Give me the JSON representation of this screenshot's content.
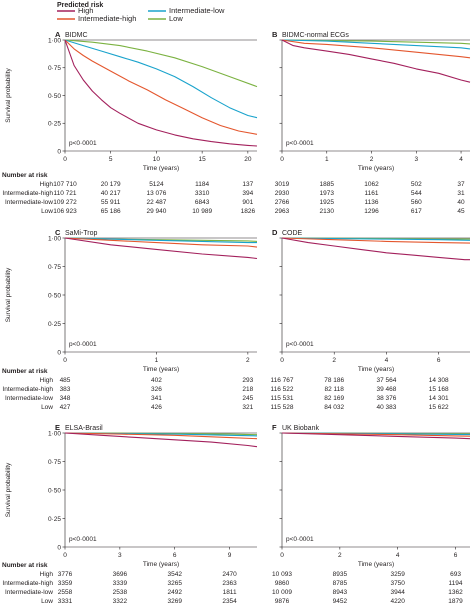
{
  "legend": {
    "title": "Predicted risk",
    "items": [
      {
        "label": "High",
        "color": "#a3205c"
      },
      {
        "label": "Intermediate-high",
        "color": "#e4572e"
      },
      {
        "label": "Intermediate-low",
        "color": "#1aa3cc"
      },
      {
        "label": "Low",
        "color": "#7bb241"
      }
    ]
  },
  "risk_groups": [
    "High",
    "Intermediate-high",
    "Intermediate-low",
    "Low"
  ],
  "number_at_risk_label": "Number at risk",
  "ylabel": "Survival probability",
  "xlabel": "Time (years)",
  "yticks": [
    "0",
    "0·25",
    "0·50",
    "0·75",
    "1·00"
  ],
  "chart_data": [
    {
      "panel": "A",
      "title": "BIDMC",
      "type": "line",
      "pvalue": "p<0·0001",
      "xlim": [
        0,
        21
      ],
      "ylim": [
        0,
        1
      ],
      "xticks": [
        0,
        5,
        10,
        15,
        20
      ],
      "series": [
        {
          "name": "High",
          "x": [
            0,
            1,
            2,
            3,
            4,
            5,
            6,
            8,
            10,
            12,
            14,
            16,
            18,
            20,
            21
          ],
          "y": [
            1,
            0.77,
            0.64,
            0.54,
            0.46,
            0.39,
            0.34,
            0.25,
            0.19,
            0.145,
            0.11,
            0.085,
            0.065,
            0.05,
            0.045
          ]
        },
        {
          "name": "Intermediate-high",
          "x": [
            0,
            1,
            2,
            3,
            5,
            7,
            9,
            11,
            13,
            15,
            17,
            19,
            21
          ],
          "y": [
            1,
            0.92,
            0.86,
            0.81,
            0.72,
            0.63,
            0.55,
            0.46,
            0.38,
            0.3,
            0.23,
            0.18,
            0.15
          ]
        },
        {
          "name": "Intermediate-low",
          "x": [
            0,
            2,
            4,
            6,
            8,
            10,
            12,
            14,
            16,
            18,
            20,
            21
          ],
          "y": [
            1,
            0.95,
            0.9,
            0.85,
            0.8,
            0.74,
            0.67,
            0.58,
            0.48,
            0.39,
            0.32,
            0.3
          ]
        },
        {
          "name": "Low",
          "x": [
            0,
            3,
            6,
            9,
            12,
            15,
            18,
            21
          ],
          "y": [
            1,
            0.98,
            0.95,
            0.9,
            0.84,
            0.76,
            0.67,
            0.58
          ]
        }
      ],
      "at_risk": {
        "ticks": [
          "0",
          "5",
          "10",
          "15",
          "20"
        ],
        "rows": [
          [
            "107 710",
            "20 179",
            "5124",
            "1184",
            "137"
          ],
          [
            "110 721",
            "40 217",
            "13 076",
            "3310",
            "394"
          ],
          [
            "109 272",
            "55 911",
            "22 487",
            "6843",
            "901"
          ],
          [
            "106 923",
            "65 186",
            "29 940",
            "10 989",
            "1826"
          ]
        ]
      }
    },
    {
      "panel": "B",
      "title": "BIDMC-normal ECGs",
      "type": "line",
      "pvalue": "p<0·0001",
      "xlim": [
        0,
        4.2
      ],
      "ylim": [
        0,
        1
      ],
      "xticks": [
        0,
        1,
        2,
        3,
        4
      ],
      "series": [
        {
          "name": "High",
          "x": [
            0,
            0.25,
            0.5,
            1,
            1.5,
            2,
            2.5,
            3,
            3.5,
            4,
            4.2
          ],
          "y": [
            1,
            0.95,
            0.93,
            0.9,
            0.87,
            0.83,
            0.79,
            0.74,
            0.7,
            0.64,
            0.62
          ]
        },
        {
          "name": "Intermediate-high",
          "x": [
            0,
            0.5,
            1,
            2,
            3,
            4,
            4.2
          ],
          "y": [
            1,
            0.97,
            0.96,
            0.93,
            0.89,
            0.85,
            0.84
          ]
        },
        {
          "name": "Intermediate-low",
          "x": [
            0,
            1,
            2,
            3,
            4,
            4.2
          ],
          "y": [
            1,
            0.99,
            0.97,
            0.95,
            0.93,
            0.92
          ]
        },
        {
          "name": "Low",
          "x": [
            0,
            1,
            2,
            3,
            4,
            4.2
          ],
          "y": [
            1,
            0.995,
            0.99,
            0.98,
            0.97,
            0.965
          ]
        }
      ],
      "at_risk": {
        "ticks": [
          "0",
          "1",
          "2",
          "3",
          "4"
        ],
        "rows": [
          [
            "3019",
            "1885",
            "1062",
            "502",
            "37"
          ],
          [
            "2930",
            "1973",
            "1161",
            "544",
            "31"
          ],
          [
            "2766",
            "1925",
            "1136",
            "560",
            "40"
          ],
          [
            "2963",
            "2130",
            "1296",
            "617",
            "45"
          ]
        ]
      }
    },
    {
      "panel": "C",
      "title": "SaMi-Trop",
      "type": "line",
      "pvalue": "p<0·0001",
      "xlim": [
        0,
        2.1
      ],
      "ylim": [
        0,
        1
      ],
      "xticks": [
        0,
        1,
        2
      ],
      "series": [
        {
          "name": "High",
          "x": [
            0,
            0.5,
            1,
            1.5,
            2,
            2.1
          ],
          "y": [
            1,
            0.94,
            0.9,
            0.86,
            0.83,
            0.82
          ]
        },
        {
          "name": "Intermediate-high",
          "x": [
            0,
            0.5,
            1,
            1.5,
            2,
            2.1
          ],
          "y": [
            1,
            0.98,
            0.96,
            0.94,
            0.93,
            0.92
          ]
        },
        {
          "name": "Intermediate-low",
          "x": [
            0,
            0.5,
            1,
            1.5,
            2,
            2.1
          ],
          "y": [
            1,
            0.99,
            0.98,
            0.97,
            0.96,
            0.96
          ]
        },
        {
          "name": "Low",
          "x": [
            0,
            0.5,
            1,
            1.5,
            2,
            2.1
          ],
          "y": [
            1,
            0.99,
            0.985,
            0.98,
            0.975,
            0.97
          ]
        }
      ],
      "at_risk": {
        "ticks": [
          "0",
          "1",
          "2"
        ],
        "rows": [
          [
            "485",
            "402",
            "293"
          ],
          [
            "383",
            "326",
            "218"
          ],
          [
            "348",
            "341",
            "245"
          ],
          [
            "427",
            "426",
            "321"
          ]
        ]
      }
    },
    {
      "panel": "D",
      "title": "CODE",
      "type": "line",
      "pvalue": "p<0·0001",
      "xlim": [
        0,
        7.2
      ],
      "ylim": [
        0,
        1
      ],
      "xticks": [
        0,
        2,
        4,
        6
      ],
      "series": [
        {
          "name": "High",
          "x": [
            0,
            1,
            2,
            3,
            4,
            5,
            6,
            7,
            7.2
          ],
          "y": [
            1,
            0.96,
            0.93,
            0.9,
            0.87,
            0.85,
            0.83,
            0.81,
            0.81
          ]
        },
        {
          "name": "Intermediate-high",
          "x": [
            0,
            2,
            4,
            6,
            7.2
          ],
          "y": [
            1,
            0.985,
            0.97,
            0.96,
            0.955
          ]
        },
        {
          "name": "Intermediate-low",
          "x": [
            0,
            2,
            4,
            6,
            7.2
          ],
          "y": [
            1,
            0.995,
            0.99,
            0.985,
            0.98
          ]
        },
        {
          "name": "Low",
          "x": [
            0,
            2,
            4,
            6,
            7.2
          ],
          "y": [
            1,
            0.997,
            0.995,
            0.99,
            0.99
          ]
        }
      ],
      "at_risk": {
        "ticks": [
          "0",
          "2",
          "4",
          "6"
        ],
        "rows": [
          [
            "116 767",
            "78 186",
            "37 564",
            "14 308"
          ],
          [
            "116 522",
            "82 118",
            "39 468",
            "15 168"
          ],
          [
            "115 531",
            "82 169",
            "38 376",
            "14 301"
          ],
          [
            "115 528",
            "84 032",
            "40 383",
            "15 622"
          ]
        ]
      }
    },
    {
      "panel": "E",
      "title": "ELSA-Brasil",
      "type": "line",
      "pvalue": "p<0·0001",
      "xlim": [
        0,
        10.5
      ],
      "ylim": [
        0,
        1
      ],
      "xticks": [
        0,
        3,
        6,
        9
      ],
      "series": [
        {
          "name": "High",
          "x": [
            0,
            2,
            4,
            6,
            8,
            10,
            10.5
          ],
          "y": [
            1,
            0.98,
            0.96,
            0.94,
            0.92,
            0.89,
            0.88
          ]
        },
        {
          "name": "Intermediate-high",
          "x": [
            0,
            3,
            6,
            9,
            10.5
          ],
          "y": [
            1,
            0.99,
            0.98,
            0.96,
            0.95
          ]
        },
        {
          "name": "Intermediate-low",
          "x": [
            0,
            3,
            6,
            9,
            10.5
          ],
          "y": [
            1,
            0.995,
            0.99,
            0.98,
            0.975
          ]
        },
        {
          "name": "Low",
          "x": [
            0,
            3,
            6,
            9,
            10.5
          ],
          "y": [
            1,
            0.998,
            0.995,
            0.99,
            0.985
          ]
        }
      ],
      "at_risk": {
        "ticks": [
          "0",
          "3",
          "6",
          "9"
        ],
        "rows": [
          [
            "3776",
            "3696",
            "3542",
            "2470"
          ],
          [
            "3359",
            "3339",
            "3265",
            "2363"
          ],
          [
            "2558",
            "2538",
            "2492",
            "1811"
          ],
          [
            "3331",
            "3322",
            "3269",
            "2354"
          ]
        ]
      }
    },
    {
      "panel": "F",
      "title": "UK Biobank",
      "type": "line",
      "pvalue": "p<0·0001",
      "xlim": [
        0,
        6.5
      ],
      "ylim": [
        0,
        1
      ],
      "xticks": [
        0,
        2,
        4,
        6
      ],
      "series": [
        {
          "name": "High",
          "x": [
            0,
            2,
            4,
            6,
            6.5
          ],
          "y": [
            1,
            0.985,
            0.97,
            0.955,
            0.95
          ]
        },
        {
          "name": "Intermediate-high",
          "x": [
            0,
            2,
            4,
            6,
            6.5
          ],
          "y": [
            1,
            0.993,
            0.985,
            0.975,
            0.972
          ]
        },
        {
          "name": "Intermediate-low",
          "x": [
            0,
            2,
            4,
            6,
            6.5
          ],
          "y": [
            1,
            0.997,
            0.993,
            0.988,
            0.986
          ]
        },
        {
          "name": "Low",
          "x": [
            0,
            2,
            4,
            6,
            6.5
          ],
          "y": [
            1,
            0.998,
            0.996,
            0.993,
            0.992
          ]
        }
      ],
      "at_risk": {
        "ticks": [
          "0",
          "2",
          "4",
          "6"
        ],
        "rows": [
          [
            "10 093",
            "8935",
            "3259",
            "693"
          ],
          [
            "9860",
            "8785",
            "3750",
            "1194"
          ],
          [
            "10 009",
            "8943",
            "3944",
            "1362"
          ],
          [
            "9876",
            "9452",
            "4220",
            "1879"
          ]
        ]
      }
    }
  ]
}
